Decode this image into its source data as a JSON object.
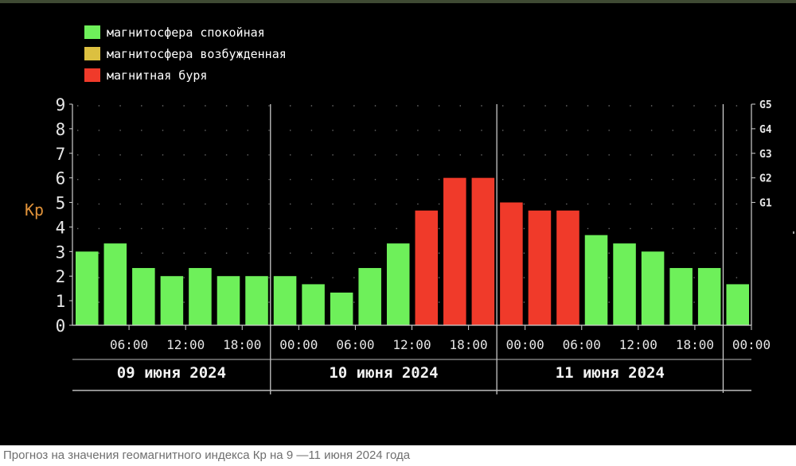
{
  "chart_data": {
    "type": "bar",
    "ylabel": "Kp",
    "ylim": [
      0,
      9
    ],
    "y_ticks": [
      "0",
      "1",
      "2",
      "3",
      "4",
      "5",
      "6",
      "7",
      "8",
      "9"
    ],
    "g_levels": [
      {
        "label": "G1",
        "kp": 5
      },
      {
        "label": "G2",
        "kp": 6
      },
      {
        "label": "G3",
        "kp": 7
      },
      {
        "label": "G4",
        "kp": 8
      },
      {
        "label": "G5",
        "kp": 9
      }
    ],
    "legend": [
      {
        "label": "магнитосфера спокойная",
        "color": "#6ef05a"
      },
      {
        "label": "магнитосфера возбужденная",
        "color": "#dcc040"
      },
      {
        "label": "магнитная буря",
        "color": "#f03a2a"
      }
    ],
    "x_time_labels": [
      "06:00",
      "12:00",
      "18:00",
      "00:00",
      "06:00",
      "12:00",
      "18:00",
      "00:00",
      "06:00",
      "12:00",
      "18:00",
      "00:00"
    ],
    "days": [
      "09 июня 2024",
      "10 июня 2024",
      "11 июня 2024"
    ],
    "values": [
      3.0,
      3.33,
      2.33,
      2.0,
      2.33,
      2.0,
      2.0,
      2.0,
      1.67,
      1.33,
      2.33,
      3.33,
      4.67,
      6.0,
      6.0,
      5.0,
      4.67,
      4.67,
      3.67,
      3.33,
      3.0,
      2.33,
      2.33,
      1.67
    ],
    "status": [
      "calm",
      "calm",
      "calm",
      "calm",
      "calm",
      "calm",
      "calm",
      "calm",
      "calm",
      "calm",
      "calm",
      "calm",
      "storm",
      "storm",
      "storm",
      "storm",
      "storm",
      "storm",
      "calm",
      "calm",
      "calm",
      "calm",
      "calm",
      "calm"
    ]
  },
  "caption": "Прогноз на значения геомагнитного индекса Кр на 9 —11 июня 2024 года"
}
